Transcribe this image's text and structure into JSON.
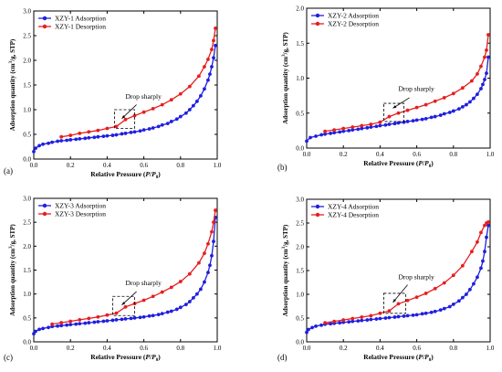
{
  "colors": {
    "adsorption": "#1f1fe0",
    "desorption": "#e61e1e",
    "axis": "#000000",
    "box": "#000000"
  },
  "chart_data": [
    {
      "type": "line",
      "panel_label": "(a)",
      "xlabel_main": "Relative Pressure (",
      "xlabel_var": "P",
      "xlabel_sep": "/",
      "xlabel_var0": "P",
      "xlabel_sub": "0",
      "xlabel_end": ")",
      "ylabel_main": "Adsorption quantity (cm",
      "ylabel_sup": "3",
      "ylabel_end": "/g, STP)",
      "annotation": "Drop sharply",
      "xlim": [
        0,
        1.0
      ],
      "ylim": [
        0,
        3.0
      ],
      "xticks": [
        "0.0",
        "0.2",
        "0.4",
        "0.6",
        "0.8",
        "1.0"
      ],
      "yticks": [
        "0.0",
        "0.5",
        "1.0",
        "1.5",
        "2.0",
        "2.5",
        "3.0"
      ],
      "drop_box": {
        "x0": 0.44,
        "x1": 0.55,
        "y0": 0.62,
        "y1": 1.0
      },
      "arrow_from": [
        0.56,
        1.1
      ],
      "arrow_to": [
        0.48,
        0.82
      ],
      "label_at": [
        0.5,
        1.22
      ],
      "series": [
        {
          "name": "XZY-1 Adsorption",
          "x": [
            0.0,
            0.01,
            0.03,
            0.05,
            0.08,
            0.1,
            0.13,
            0.15,
            0.18,
            0.2,
            0.23,
            0.25,
            0.28,
            0.3,
            0.33,
            0.35,
            0.38,
            0.4,
            0.43,
            0.45,
            0.48,
            0.5,
            0.53,
            0.55,
            0.58,
            0.6,
            0.63,
            0.65,
            0.68,
            0.7,
            0.73,
            0.75,
            0.78,
            0.8,
            0.83,
            0.85,
            0.87,
            0.89,
            0.91,
            0.93,
            0.95,
            0.96,
            0.97,
            0.98,
            0.99
          ],
          "values": [
            0.15,
            0.22,
            0.27,
            0.3,
            0.32,
            0.34,
            0.36,
            0.37,
            0.38,
            0.39,
            0.4,
            0.41,
            0.42,
            0.43,
            0.44,
            0.45,
            0.46,
            0.47,
            0.48,
            0.49,
            0.51,
            0.52,
            0.54,
            0.55,
            0.57,
            0.59,
            0.61,
            0.63,
            0.66,
            0.69,
            0.72,
            0.76,
            0.81,
            0.86,
            0.93,
            1.0,
            1.08,
            1.17,
            1.28,
            1.42,
            1.6,
            1.72,
            1.87,
            2.05,
            2.3
          ]
        },
        {
          "name": "XZY-1 Desorption",
          "x": [
            0.15,
            0.2,
            0.25,
            0.3,
            0.35,
            0.4,
            0.45,
            0.5,
            0.55,
            0.6,
            0.65,
            0.7,
            0.75,
            0.8,
            0.85,
            0.9,
            0.93,
            0.95,
            0.97,
            0.98,
            0.99
          ],
          "values": [
            0.45,
            0.48,
            0.52,
            0.55,
            0.58,
            0.62,
            0.66,
            0.8,
            0.88,
            0.95,
            1.02,
            1.1,
            1.2,
            1.32,
            1.47,
            1.68,
            1.87,
            2.02,
            2.22,
            2.4,
            2.65
          ]
        }
      ]
    },
    {
      "type": "line",
      "panel_label": "(b)",
      "xlabel_main": "Relative Pressure (",
      "xlabel_var": "P",
      "xlabel_sep": "/",
      "xlabel_var0": "P",
      "xlabel_sub": "0",
      "xlabel_end": ")",
      "ylabel_main": "Adsorption quantity (cm",
      "ylabel_sup": "3",
      "ylabel_end": "/g, STP)",
      "annotation": "Drop sharply",
      "xlim": [
        0,
        1.0
      ],
      "ylim": [
        0,
        2.0
      ],
      "xticks": [
        "0.0",
        "0.2",
        "0.4",
        "0.6",
        "0.8",
        "1.0"
      ],
      "yticks": [
        "0.0",
        "0.5",
        "1.0",
        "1.5",
        "2.0"
      ],
      "drop_box": {
        "x0": 0.42,
        "x1": 0.53,
        "y0": 0.38,
        "y1": 0.64
      },
      "arrow_from": [
        0.56,
        0.72
      ],
      "arrow_to": [
        0.47,
        0.57
      ],
      "label_at": [
        0.5,
        0.82
      ],
      "series": [
        {
          "name": "XZY-2 Adsorption",
          "x": [
            0.0,
            0.02,
            0.05,
            0.08,
            0.1,
            0.13,
            0.15,
            0.18,
            0.2,
            0.23,
            0.25,
            0.28,
            0.3,
            0.33,
            0.35,
            0.38,
            0.4,
            0.43,
            0.45,
            0.48,
            0.5,
            0.53,
            0.55,
            0.58,
            0.6,
            0.63,
            0.65,
            0.68,
            0.7,
            0.73,
            0.75,
            0.78,
            0.8,
            0.83,
            0.85,
            0.87,
            0.89,
            0.91,
            0.93,
            0.95,
            0.96,
            0.97,
            0.98,
            0.99
          ],
          "values": [
            0.1,
            0.15,
            0.17,
            0.19,
            0.2,
            0.21,
            0.22,
            0.23,
            0.24,
            0.25,
            0.26,
            0.27,
            0.28,
            0.29,
            0.3,
            0.31,
            0.32,
            0.33,
            0.34,
            0.35,
            0.36,
            0.37,
            0.38,
            0.39,
            0.4,
            0.41,
            0.42,
            0.44,
            0.45,
            0.47,
            0.49,
            0.51,
            0.53,
            0.56,
            0.59,
            0.62,
            0.66,
            0.71,
            0.77,
            0.85,
            0.91,
            0.98,
            1.07,
            1.3
          ]
        },
        {
          "name": "XZY-2 Desorption",
          "x": [
            0.1,
            0.15,
            0.2,
            0.25,
            0.3,
            0.35,
            0.4,
            0.45,
            0.5,
            0.55,
            0.6,
            0.65,
            0.7,
            0.75,
            0.8,
            0.85,
            0.9,
            0.93,
            0.95,
            0.97,
            0.98,
            0.99
          ],
          "values": [
            0.24,
            0.26,
            0.28,
            0.3,
            0.32,
            0.34,
            0.37,
            0.45,
            0.5,
            0.54,
            0.58,
            0.62,
            0.67,
            0.72,
            0.78,
            0.86,
            0.96,
            1.06,
            1.17,
            1.3,
            1.4,
            1.62
          ]
        }
      ]
    },
    {
      "type": "line",
      "panel_label": "(c)",
      "xlabel_main": "Relative Pressure (",
      "xlabel_var": "P",
      "xlabel_sep": "/",
      "xlabel_var0": "P",
      "xlabel_sub": "0",
      "xlabel_end": ")",
      "ylabel_main": "Adsorption quantity (cm",
      "ylabel_sup": "3",
      "ylabel_end": "/g, STP)",
      "annotation": "Drop sharply",
      "xlim": [
        0,
        1.0
      ],
      "ylim": [
        0,
        3.0
      ],
      "xticks": [
        "0.0",
        "0.2",
        "0.4",
        "0.6",
        "0.8",
        "1.0"
      ],
      "yticks": [
        "0.0",
        "0.5",
        "1.0",
        "1.5",
        "2.0",
        "2.5",
        "3.0"
      ],
      "drop_box": {
        "x0": 0.43,
        "x1": 0.55,
        "y0": 0.55,
        "y1": 0.95
      },
      "arrow_from": [
        0.56,
        1.05
      ],
      "arrow_to": [
        0.48,
        0.77
      ],
      "label_at": [
        0.5,
        1.18
      ],
      "series": [
        {
          "name": "XZY-3 Adsorption",
          "x": [
            0.0,
            0.01,
            0.03,
            0.05,
            0.08,
            0.1,
            0.13,
            0.15,
            0.18,
            0.2,
            0.23,
            0.25,
            0.28,
            0.3,
            0.33,
            0.35,
            0.38,
            0.4,
            0.43,
            0.45,
            0.48,
            0.5,
            0.53,
            0.55,
            0.58,
            0.6,
            0.63,
            0.65,
            0.68,
            0.7,
            0.73,
            0.75,
            0.78,
            0.8,
            0.83,
            0.85,
            0.87,
            0.89,
            0.91,
            0.93,
            0.95,
            0.96,
            0.97,
            0.98,
            0.99
          ],
          "values": [
            0.17,
            0.22,
            0.26,
            0.28,
            0.3,
            0.32,
            0.33,
            0.34,
            0.35,
            0.36,
            0.37,
            0.38,
            0.39,
            0.4,
            0.41,
            0.42,
            0.43,
            0.44,
            0.45,
            0.46,
            0.47,
            0.48,
            0.49,
            0.5,
            0.51,
            0.52,
            0.54,
            0.55,
            0.57,
            0.59,
            0.62,
            0.64,
            0.68,
            0.72,
            0.78,
            0.84,
            0.92,
            1.0,
            1.1,
            1.25,
            1.45,
            1.6,
            1.8,
            2.1,
            2.6
          ]
        },
        {
          "name": "XZY-3 Desorption",
          "x": [
            0.1,
            0.15,
            0.2,
            0.25,
            0.3,
            0.35,
            0.4,
            0.45,
            0.5,
            0.55,
            0.6,
            0.65,
            0.7,
            0.75,
            0.8,
            0.85,
            0.9,
            0.93,
            0.95,
            0.97,
            0.98,
            0.99
          ],
          "values": [
            0.37,
            0.4,
            0.43,
            0.46,
            0.49,
            0.52,
            0.56,
            0.6,
            0.73,
            0.8,
            0.87,
            0.95,
            1.04,
            1.14,
            1.26,
            1.42,
            1.65,
            1.85,
            2.05,
            2.3,
            2.5,
            2.75
          ]
        }
      ]
    },
    {
      "type": "line",
      "panel_label": "(d)",
      "xlabel_main": "Relative Pressure (",
      "xlabel_var": "P",
      "xlabel_sep": "/",
      "xlabel_var0": "P",
      "xlabel_sub": "0",
      "xlabel_end": ")",
      "ylabel_main": "Adsorption quantity (cm",
      "ylabel_sup": "3",
      "ylabel_end": "/g, STP)",
      "annotation": "Drop sharply",
      "xlim": [
        0,
        1.0
      ],
      "ylim": [
        0,
        3.0
      ],
      "xticks": [
        "0.0",
        "0.2",
        "0.4",
        "0.6",
        "0.8",
        "1.0"
      ],
      "yticks": [
        "0.0",
        "0.5",
        "1.0",
        "1.5",
        "2.0",
        "2.5",
        "3.0"
      ],
      "drop_box": {
        "x0": 0.42,
        "x1": 0.54,
        "y0": 0.6,
        "y1": 1.02
      },
      "arrow_from": [
        0.55,
        1.2
      ],
      "arrow_to": [
        0.47,
        0.83
      ],
      "label_at": [
        0.5,
        1.32
      ],
      "series": [
        {
          "name": "XZY-4 Adsorption",
          "x": [
            0.0,
            0.01,
            0.03,
            0.05,
            0.08,
            0.1,
            0.13,
            0.15,
            0.18,
            0.2,
            0.23,
            0.25,
            0.28,
            0.3,
            0.33,
            0.35,
            0.38,
            0.4,
            0.43,
            0.45,
            0.48,
            0.5,
            0.53,
            0.55,
            0.58,
            0.6,
            0.63,
            0.65,
            0.68,
            0.7,
            0.73,
            0.75,
            0.78,
            0.8,
            0.83,
            0.85,
            0.87,
            0.89,
            0.91,
            0.93,
            0.95,
            0.96,
            0.97,
            0.98,
            0.99
          ],
          "values": [
            0.2,
            0.26,
            0.3,
            0.33,
            0.35,
            0.37,
            0.38,
            0.39,
            0.4,
            0.41,
            0.42,
            0.43,
            0.44,
            0.45,
            0.46,
            0.47,
            0.48,
            0.49,
            0.5,
            0.51,
            0.52,
            0.53,
            0.54,
            0.55,
            0.56,
            0.57,
            0.59,
            0.6,
            0.62,
            0.64,
            0.67,
            0.7,
            0.74,
            0.79,
            0.86,
            0.93,
            1.0,
            1.1,
            1.22,
            1.36,
            1.55,
            1.7,
            1.9,
            2.2,
            2.45
          ]
        },
        {
          "name": "XZY-4 Desorption",
          "x": [
            0.1,
            0.15,
            0.2,
            0.25,
            0.3,
            0.35,
            0.4,
            0.45,
            0.5,
            0.55,
            0.6,
            0.65,
            0.7,
            0.75,
            0.8,
            0.85,
            0.9,
            0.93,
            0.95,
            0.97,
            0.98,
            0.99
          ],
          "values": [
            0.4,
            0.43,
            0.46,
            0.49,
            0.52,
            0.55,
            0.6,
            0.65,
            0.8,
            0.87,
            0.94,
            1.02,
            1.12,
            1.24,
            1.4,
            1.6,
            1.9,
            2.1,
            2.3,
            2.45,
            2.5,
            2.52
          ]
        }
      ]
    }
  ]
}
